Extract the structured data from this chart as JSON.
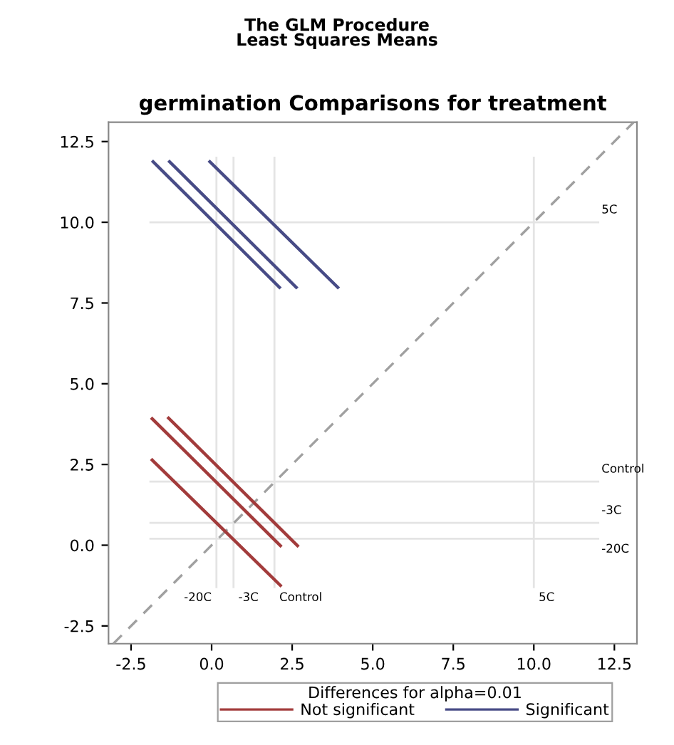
{
  "chart_data": {
    "type": "line",
    "title": "The GLM Procedure",
    "subtitle": "Least Squares Means",
    "annotations": [
      "germination Comparisons for treatment"
    ],
    "legend_title": "Differences for alpha=0.01",
    "legend": "bottom",
    "grid": false,
    "marker": "none",
    "xlim": [
      -3.2,
      13.2
    ],
    "ylim": [
      -3.05,
      13.1
    ],
    "xticks": [
      {
        "value": -2.5,
        "label": "-2.5"
      },
      {
        "value": 0,
        "label": "0.0"
      },
      {
        "value": 2.5,
        "label": "2.5"
      },
      {
        "value": 5,
        "label": "5.0"
      },
      {
        "value": 7.5,
        "label": "7.5"
      },
      {
        "value": 10,
        "label": "10.0"
      },
      {
        "value": 12.5,
        "label": "12.5"
      }
    ],
    "yticks": [
      {
        "value": -2.5,
        "label": "-2.5"
      },
      {
        "value": 0,
        "label": "0.0"
      },
      {
        "value": 2.5,
        "label": "2.5"
      },
      {
        "value": 5,
        "label": "5.0"
      },
      {
        "value": 7.5,
        "label": "7.5"
      },
      {
        "value": 10,
        "label": "10.0"
      },
      {
        "value": 12.5,
        "label": "12.5"
      }
    ],
    "ref_lines": [
      {
        "axis": "x",
        "value": 0.15,
        "label": "-20C",
        "color": "#e4e4e4"
      },
      {
        "axis": "x",
        "value": 0.68,
        "label": "-3C",
        "color": "#e4e4e4"
      },
      {
        "axis": "x",
        "value": 1.95,
        "label": "Control",
        "color": "#e4e4e4"
      },
      {
        "axis": "x",
        "value": 10.0,
        "label": "5C",
        "color": "#e4e4e4"
      },
      {
        "axis": "y",
        "value": 0.2,
        "label": "-20C",
        "color": "#e4e4e4"
      },
      {
        "axis": "y",
        "value": 0.69,
        "label": "-3C",
        "color": "#e4e4e4"
      },
      {
        "axis": "y",
        "value": 1.97,
        "label": "Control",
        "color": "#e4e4e4"
      },
      {
        "axis": "y",
        "value": 10.0,
        "label": "5C",
        "color": "#e4e4e4"
      }
    ],
    "series": [
      {
        "color": "#a0a0a0",
        "line_style": "dashed",
        "x": [
          -3.05,
          13.1
        ],
        "values": [
          -3.05,
          13.1
        ]
      },
      {
        "name": "Not significant",
        "color": "#a23b3b",
        "x": [
          -1.88,
          2.17
        ],
        "values": [
          2.67,
          -1.28
        ]
      },
      {
        "color": "#a23b3b",
        "x": [
          -1.88,
          2.17
        ],
        "values": [
          3.95,
          -0.05
        ]
      },
      {
        "color": "#a23b3b",
        "x": [
          -1.37,
          2.7
        ],
        "values": [
          3.97,
          -0.05
        ]
      },
      {
        "name": "Significant",
        "color": "#474b86",
        "x": [
          -1.85,
          2.14
        ],
        "values": [
          11.91,
          7.95
        ]
      },
      {
        "color": "#474b86",
        "x": [
          -1.34,
          2.66
        ],
        "values": [
          11.91,
          7.95
        ]
      },
      {
        "color": "#474b86",
        "x": [
          -0.09,
          3.95
        ],
        "values": [
          11.91,
          7.95
        ]
      }
    ]
  }
}
